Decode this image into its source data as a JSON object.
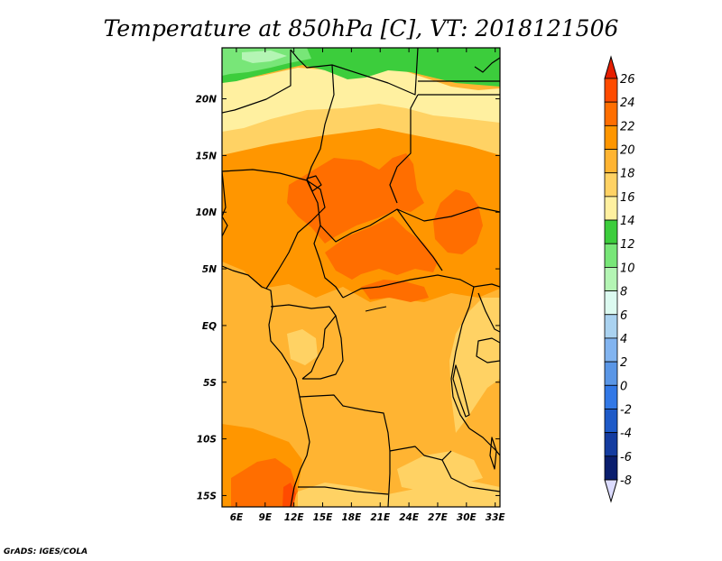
{
  "title": "Temperature at 850hPa [C], VT: 2018121506",
  "credit": "GrADS: IGES/COLA",
  "map": {
    "lon_labels": [
      "6E",
      "9E",
      "12E",
      "15E",
      "18E",
      "21E",
      "24E",
      "27E",
      "30E",
      "33E"
    ],
    "lat_labels": [
      "20N",
      "15N",
      "10N",
      "5N",
      "EQ",
      "5S",
      "10S",
      "15S"
    ],
    "lon_range": [
      4.5,
      33.5
    ],
    "lat_range": [
      -16,
      24.5
    ]
  },
  "colorbar": {
    "labels": [
      "26",
      "24",
      "22",
      "20",
      "18",
      "16",
      "14",
      "12",
      "10",
      "8",
      "6",
      "4",
      "2",
      "0",
      "-2",
      "-4",
      "-6",
      "-8"
    ],
    "colors": [
      "#e61e00",
      "#ff4b00",
      "#ff6e00",
      "#ff9600",
      "#ffb432",
      "#ffd264",
      "#fff0a0",
      "#3ccd3c",
      "#78e678",
      "#b4f5b4",
      "#dcfaf0",
      "#aad2f0",
      "#82b4f0",
      "#5a96e6",
      "#3278e6",
      "#1e5ac8",
      "#143ca0",
      "#0a1e6e",
      "#dcdcff"
    ]
  }
}
